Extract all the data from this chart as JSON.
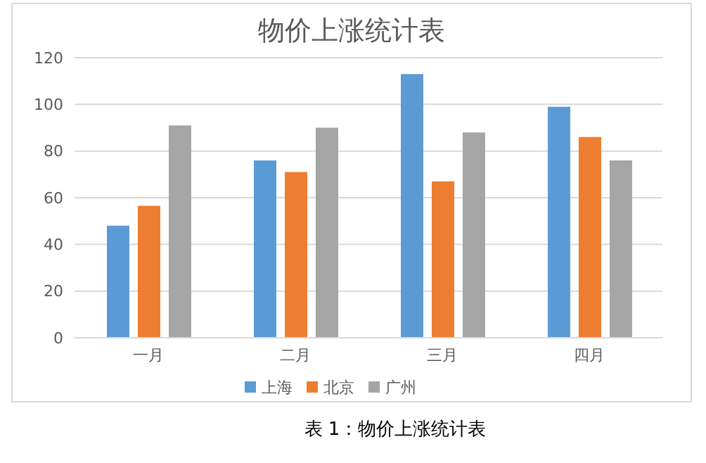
{
  "chart_data": {
    "type": "bar",
    "title": "物价上涨统计表",
    "categories": [
      "一月",
      "二月",
      "三月",
      "四月"
    ],
    "series": [
      {
        "name": "上海",
        "color": "#5b9bd5",
        "values": [
          48,
          76,
          113,
          99
        ]
      },
      {
        "name": "北京",
        "color": "#ed7d31",
        "values": [
          56.5,
          71,
          67,
          86
        ]
      },
      {
        "name": "广州",
        "color": "#a5a5a5",
        "values": [
          91,
          90,
          88,
          76
        ]
      }
    ],
    "ylim": [
      0,
      120
    ],
    "yticks": [
      0,
      20,
      40,
      60,
      80,
      100,
      120
    ],
    "grid": "y",
    "legend": "bottom",
    "annotations": [
      "表 1：物价上涨统计表"
    ]
  }
}
